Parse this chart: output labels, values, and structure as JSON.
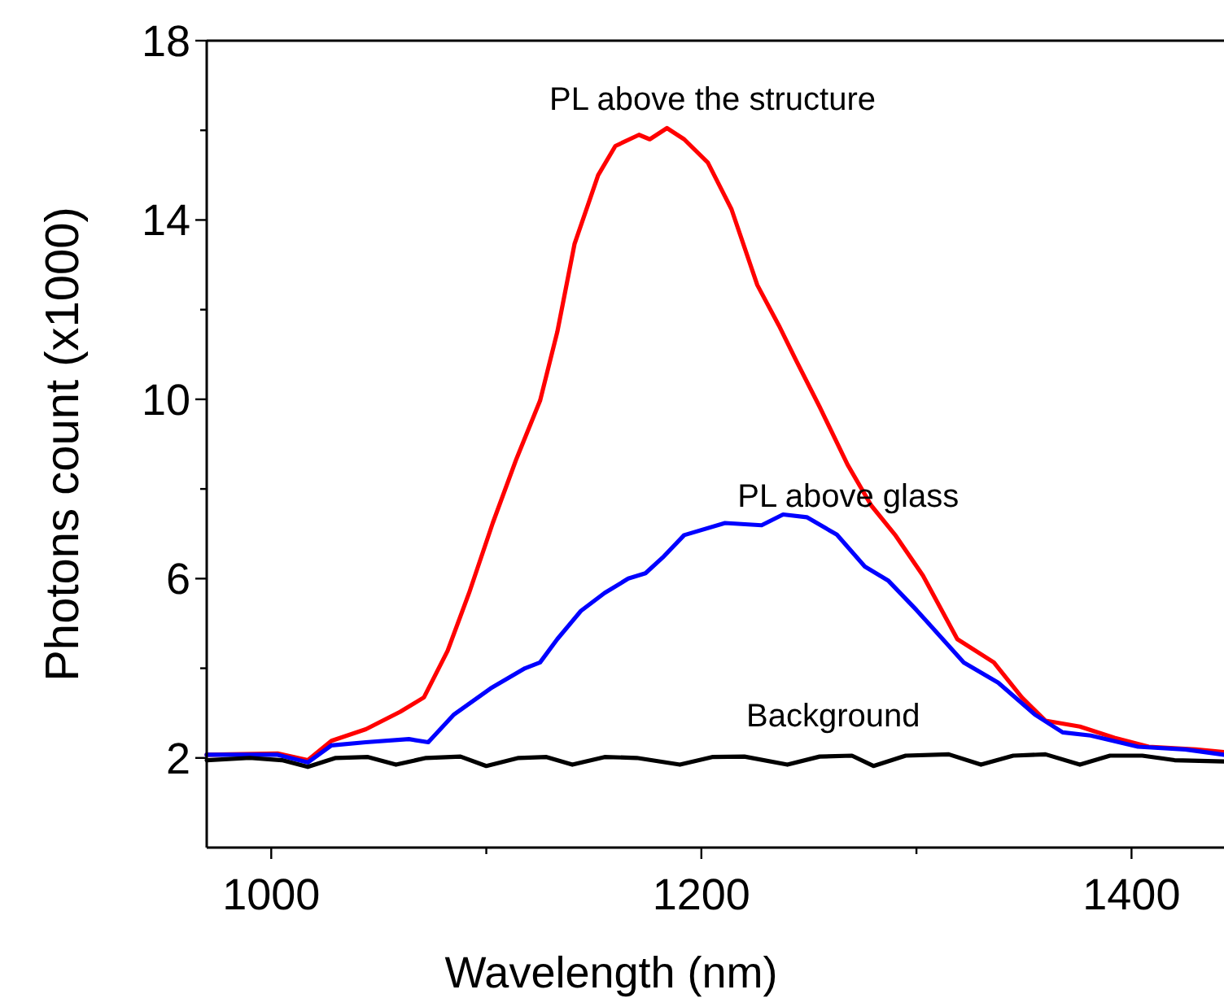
{
  "chart_data": {
    "type": "line",
    "xlabel": "Wavelength (nm)",
    "ylabel": "Photons count (x1000)",
    "xlim": [
      970,
      1443
    ],
    "ylim": [
      0,
      18
    ],
    "xticks": [
      1000,
      {
        "value": 1100,
        "label": null
      },
      1200,
      {
        "value": 1300,
        "label": null
      },
      1400
    ],
    "yticks": [
      2,
      {
        "value": 4,
        "label": null
      },
      6,
      {
        "value": 8,
        "label": null
      },
      10,
      {
        "value": 12,
        "label": null
      },
      14,
      {
        "value": 16,
        "label": null
      },
      18
    ],
    "grid": false,
    "marker": "none",
    "line_style": "solid",
    "series": [
      {
        "name": "PL above the structure",
        "color": "#ff0000",
        "x": [
          970,
          1003,
          1017,
          1028,
          1044,
          1060,
          1071,
          1082,
          1092,
          1103,
          1114,
          1125,
          1133,
          1141,
          1152,
          1160,
          1171,
          1176,
          1184,
          1192,
          1203,
          1214,
          1226,
          1236,
          1244,
          1255,
          1268,
          1279,
          1290,
          1303,
          1319,
          1336,
          1349,
          1360,
          1376,
          1392,
          1408,
          1430,
          1443
        ],
        "values": [
          2.07,
          2.1,
          1.95,
          2.38,
          2.64,
          3.03,
          3.35,
          4.39,
          5.68,
          7.24,
          8.67,
          9.97,
          11.5,
          13.46,
          15.0,
          15.65,
          15.9,
          15.8,
          16.05,
          15.8,
          15.28,
          14.24,
          12.55,
          11.65,
          10.87,
          9.83,
          8.54,
          7.63,
          6.98,
          6.07,
          4.65,
          4.13,
          3.35,
          2.83,
          2.7,
          2.45,
          2.25,
          2.19,
          2.13
        ]
      },
      {
        "name": "PL above glass",
        "color": "#0000ff",
        "x": [
          970,
          1003,
          1017,
          1028,
          1044,
          1064,
          1073,
          1085,
          1102,
          1118,
          1125,
          1133,
          1144,
          1155,
          1166,
          1174,
          1182,
          1192,
          1211,
          1228,
          1238,
          1249,
          1263,
          1276,
          1287,
          1300,
          1322,
          1338,
          1355,
          1368,
          1381,
          1403,
          1425,
          1443
        ],
        "values": [
          2.07,
          2.07,
          1.9,
          2.28,
          2.35,
          2.42,
          2.35,
          2.97,
          3.55,
          4.0,
          4.13,
          4.65,
          5.28,
          5.68,
          6.0,
          6.12,
          6.47,
          6.97,
          7.24,
          7.19,
          7.43,
          7.37,
          6.98,
          6.27,
          5.95,
          5.3,
          4.13,
          3.68,
          2.97,
          2.57,
          2.5,
          2.25,
          2.19,
          2.07
        ]
      },
      {
        "name": "Background",
        "color": "#000000",
        "x": [
          970,
          990,
          1005,
          1017,
          1030,
          1045,
          1058,
          1072,
          1088,
          1100,
          1115,
          1128,
          1140,
          1155,
          1170,
          1190,
          1205,
          1220,
          1240,
          1255,
          1270,
          1280,
          1295,
          1315,
          1330,
          1345,
          1360,
          1376,
          1390,
          1405,
          1420,
          1443
        ],
        "values": [
          1.95,
          2.0,
          1.95,
          1.8,
          2.0,
          2.02,
          1.85,
          2.0,
          2.03,
          1.82,
          2.0,
          2.02,
          1.85,
          2.02,
          2.0,
          1.85,
          2.02,
          2.03,
          1.85,
          2.03,
          2.05,
          1.82,
          2.05,
          2.08,
          1.85,
          2.05,
          2.08,
          1.85,
          2.05,
          2.05,
          1.95,
          1.92
        ]
      }
    ]
  }
}
